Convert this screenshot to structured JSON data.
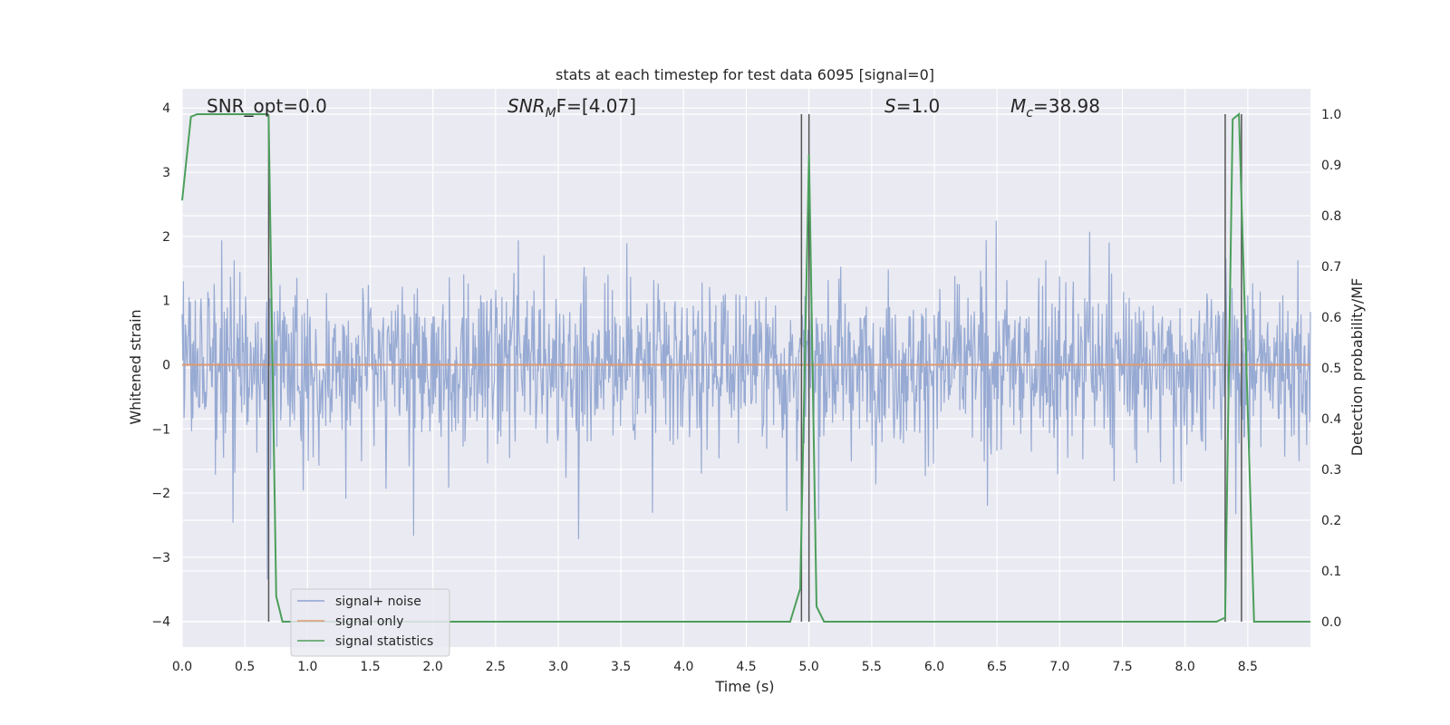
{
  "chart_data": {
    "type": "line",
    "title": "stats at each timestep for test data 6095 [signal=0]",
    "xlabel": "Time (s)",
    "ylabel_left": "Whitened strain",
    "ylabel_right": "Detection probability/MF",
    "xlim": [
      0,
      9
    ],
    "ylim_left": [
      -4.4,
      4.3
    ],
    "ylim_right": [
      -0.05,
      1.05
    ],
    "x_ticks": [
      "0.0",
      "0.5",
      "1.0",
      "1.5",
      "2.0",
      "2.5",
      "3.0",
      "3.5",
      "4.0",
      "4.5",
      "5.0",
      "5.5",
      "6.0",
      "6.5",
      "7.0",
      "7.5",
      "8.0",
      "8.5"
    ],
    "y_ticks_left": [
      "−4",
      "−3",
      "−2",
      "−1",
      "0",
      "1",
      "2",
      "3",
      "4"
    ],
    "y_ticks_right": [
      "0.0",
      "0.1",
      "0.2",
      "0.3",
      "0.4",
      "0.5",
      "0.6",
      "0.7",
      "0.8",
      "0.9",
      "1.0"
    ],
    "grid": true,
    "legend_position": "bottom-left",
    "annotations": {
      "snr_opt": "SNR_opt=0.0",
      "snr_mf": "SNR",
      "snr_mf_sub": "M",
      "snr_mf_rest": "F=[4.07]",
      "s_var": "S",
      "s_val": "=1.0",
      "mc_var": "M",
      "mc_sub": "c",
      "mc_val": "=38.98"
    },
    "series": [
      {
        "name": "signal+ noise",
        "color": "#8ea3cf",
        "axis": "left",
        "description_kind": "whitened noise",
        "amplitude_envelope": 1.6,
        "max_excursion": 3.8
      },
      {
        "name": "signal only",
        "color": "#dd9a72",
        "axis": "left",
        "x": [
          0,
          9
        ],
        "y": [
          0,
          0
        ]
      },
      {
        "name": "signal statistics",
        "color": "#4c9f5b",
        "axis": "right",
        "x": [
          0,
          0.07,
          0.12,
          0.68,
          0.69,
          0.75,
          0.8,
          4.85,
          4.93,
          5.0,
          5.06,
          5.12,
          8.25,
          8.32,
          8.38,
          8.43,
          8.55,
          9.0
        ],
        "y": [
          0.83,
          0.995,
          1.0,
          1.0,
          0.995,
          0.05,
          0.0,
          0.0,
          0.065,
          0.92,
          0.03,
          0.0,
          0.0,
          0.008,
          0.99,
          1.0,
          0.0,
          0.0
        ]
      }
    ],
    "vertical_markers_x": [
      0.69,
      4.94,
      5.0,
      8.32,
      8.45
    ]
  }
}
